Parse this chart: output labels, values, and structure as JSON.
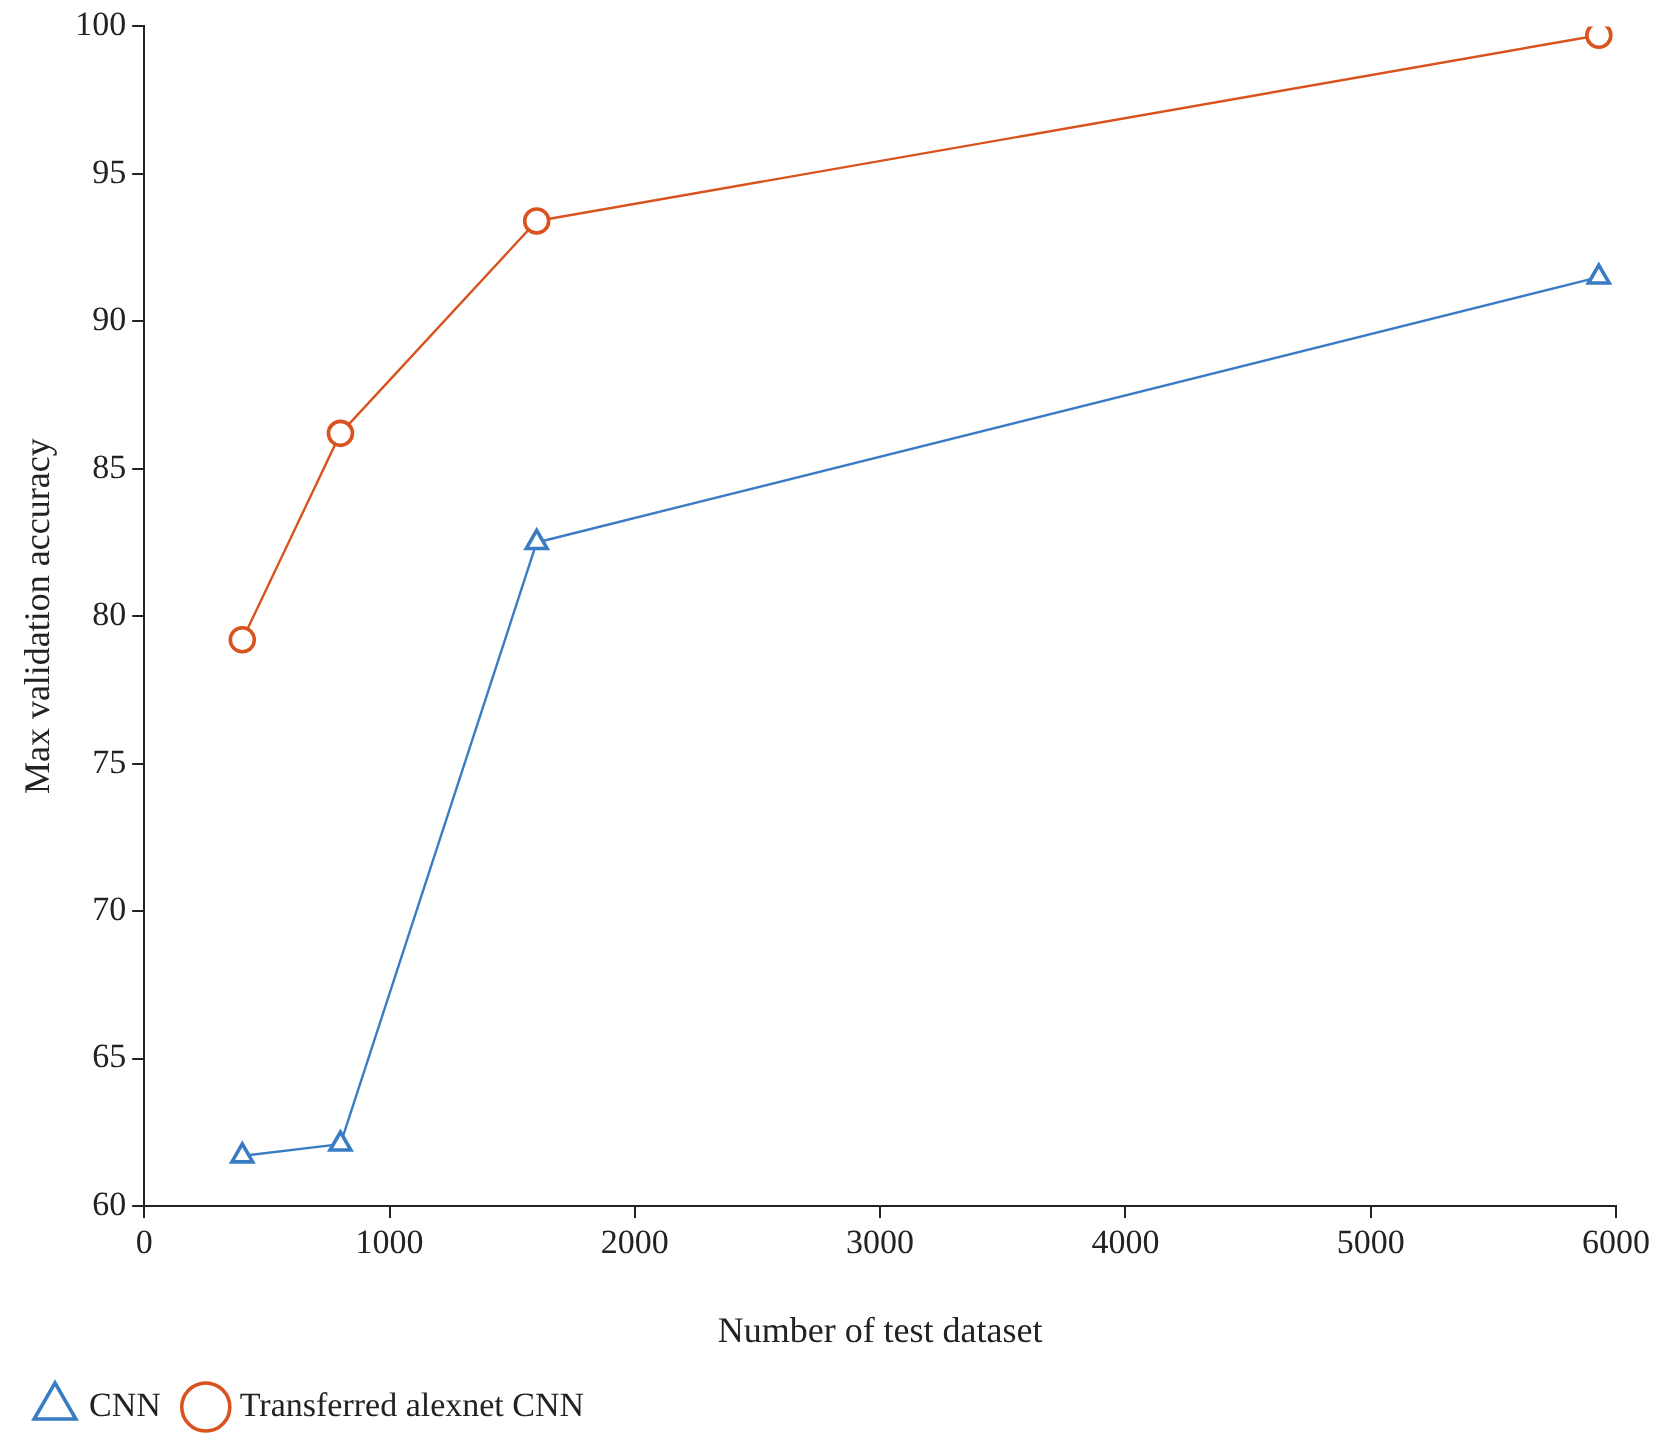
{
  "chart_data": {
    "type": "line",
    "xlabel": "Number of test dataset",
    "ylabel": "Max validation accuracy",
    "xlim": [
      0,
      6000
    ],
    "xticks": [
      0,
      1000,
      2000,
      3000,
      4000,
      5000,
      6000
    ],
    "ylim": [
      60,
      100
    ],
    "yticks": [
      60,
      65,
      70,
      75,
      80,
      85,
      90,
      95,
      100
    ],
    "legend": "bottom left",
    "line_style": "solid",
    "series": [
      {
        "name": "CNN",
        "color": "#3a7cc4",
        "marker": "triangle",
        "x": [
          400,
          800,
          1600,
          5930
        ],
        "values": [
          61.7,
          62.1,
          82.5,
          91.5
        ]
      },
      {
        "name": "Transferred alexnet CNN",
        "color": "#d9531e",
        "marker": "circle",
        "x": [
          400,
          800,
          1600,
          5930
        ],
        "values": [
          79.2,
          86.2,
          93.4,
          99.7
        ]
      }
    ]
  }
}
